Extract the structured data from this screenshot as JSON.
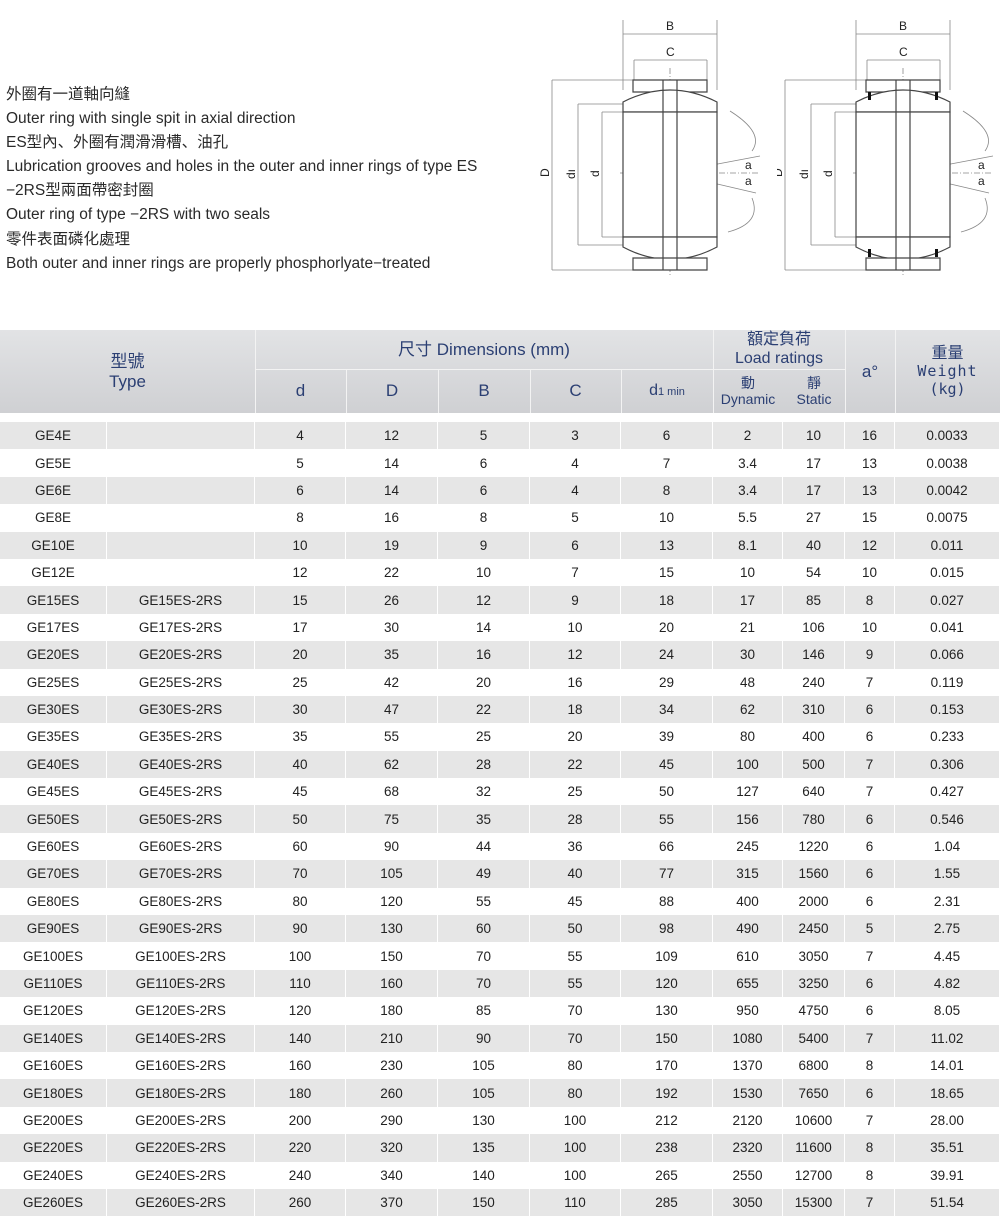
{
  "notes": [
    "外圈有一道軸向縫",
    "Outer ring with single spit in axial direction",
    "ES型內、外圈有潤滑滑槽、油孔",
    "Lubrication grooves and holes in the outer and inner rings of type ES",
    "−2RS型兩面帶密封圈",
    "Outer ring of type −2RS with two seals",
    "零件表面磷化處理",
    "Both outer and inner rings are properly phosphorlyate−treated"
  ],
  "diagram_labels": {
    "B": "B",
    "C": "C",
    "D_left": "D",
    "D_right": "D",
    "d1": "dı",
    "d": "d",
    "a": "a"
  },
  "header": {
    "type_zh": "型號",
    "type_en": "Type",
    "dimensions": "尺寸 Dimensions (mm)",
    "load_zh": "額定負荷",
    "load_en": "Load ratings",
    "d": "d",
    "D": "D",
    "B": "B",
    "C": "C",
    "d1": "d",
    "d1_sub": "1 min",
    "dyn_zh": "動",
    "dyn_en": "Dynamic",
    "sta_zh": "靜",
    "sta_en": "Static",
    "a": "a°",
    "weight_zh": "重量",
    "weight_en": "Weight",
    "weight_unit": "(kg)"
  },
  "rows": [
    [
      "GE4E",
      "",
      "4",
      "12",
      "5",
      "3",
      "6",
      "2",
      "10",
      "16",
      "0.0033"
    ],
    [
      "GE5E",
      "",
      "5",
      "14",
      "6",
      "4",
      "7",
      "3.4",
      "17",
      "13",
      "0.0038"
    ],
    [
      "GE6E",
      "",
      "6",
      "14",
      "6",
      "4",
      "8",
      "3.4",
      "17",
      "13",
      "0.0042"
    ],
    [
      "GE8E",
      "",
      "8",
      "16",
      "8",
      "5",
      "10",
      "5.5",
      "27",
      "15",
      "0.0075"
    ],
    [
      "GE10E",
      "",
      "10",
      "19",
      "9",
      "6",
      "13",
      "8.1",
      "40",
      "12",
      "0.011"
    ],
    [
      "GE12E",
      "",
      "12",
      "22",
      "10",
      "7",
      "15",
      "10",
      "54",
      "10",
      "0.015"
    ],
    [
      "GE15ES",
      "GE15ES-2RS",
      "15",
      "26",
      "12",
      "9",
      "18",
      "17",
      "85",
      "8",
      "0.027"
    ],
    [
      "GE17ES",
      "GE17ES-2RS",
      "17",
      "30",
      "14",
      "10",
      "20",
      "21",
      "106",
      "10",
      "0.041"
    ],
    [
      "GE20ES",
      "GE20ES-2RS",
      "20",
      "35",
      "16",
      "12",
      "24",
      "30",
      "146",
      "9",
      "0.066"
    ],
    [
      "GE25ES",
      "GE25ES-2RS",
      "25",
      "42",
      "20",
      "16",
      "29",
      "48",
      "240",
      "7",
      "0.119"
    ],
    [
      "GE30ES",
      "GE30ES-2RS",
      "30",
      "47",
      "22",
      "18",
      "34",
      "62",
      "310",
      "6",
      "0.153"
    ],
    [
      "GE35ES",
      "GE35ES-2RS",
      "35",
      "55",
      "25",
      "20",
      "39",
      "80",
      "400",
      "6",
      "0.233"
    ],
    [
      "GE40ES",
      "GE40ES-2RS",
      "40",
      "62",
      "28",
      "22",
      "45",
      "100",
      "500",
      "7",
      "0.306"
    ],
    [
      "GE45ES",
      "GE45ES-2RS",
      "45",
      "68",
      "32",
      "25",
      "50",
      "127",
      "640",
      "7",
      "0.427"
    ],
    [
      "GE50ES",
      "GE50ES-2RS",
      "50",
      "75",
      "35",
      "28",
      "55",
      "156",
      "780",
      "6",
      "0.546"
    ],
    [
      "GE60ES",
      "GE60ES-2RS",
      "60",
      "90",
      "44",
      "36",
      "66",
      "245",
      "1220",
      "6",
      "1.04"
    ],
    [
      "GE70ES",
      "GE70ES-2RS",
      "70",
      "105",
      "49",
      "40",
      "77",
      "315",
      "1560",
      "6",
      "1.55"
    ],
    [
      "GE80ES",
      "GE80ES-2RS",
      "80",
      "120",
      "55",
      "45",
      "88",
      "400",
      "2000",
      "6",
      "2.31"
    ],
    [
      "GE90ES",
      "GE90ES-2RS",
      "90",
      "130",
      "60",
      "50",
      "98",
      "490",
      "2450",
      "5",
      "2.75"
    ],
    [
      "GE100ES",
      "GE100ES-2RS",
      "100",
      "150",
      "70",
      "55",
      "109",
      "610",
      "3050",
      "7",
      "4.45"
    ],
    [
      "GE110ES",
      "GE110ES-2RS",
      "110",
      "160",
      "70",
      "55",
      "120",
      "655",
      "3250",
      "6",
      "4.82"
    ],
    [
      "GE120ES",
      "GE120ES-2RS",
      "120",
      "180",
      "85",
      "70",
      "130",
      "950",
      "4750",
      "6",
      "8.05"
    ],
    [
      "GE140ES",
      "GE140ES-2RS",
      "140",
      "210",
      "90",
      "70",
      "150",
      "1080",
      "5400",
      "7",
      "11.02"
    ],
    [
      "GE160ES",
      "GE160ES-2RS",
      "160",
      "230",
      "105",
      "80",
      "170",
      "1370",
      "6800",
      "8",
      "14.01"
    ],
    [
      "GE180ES",
      "GE180ES-2RS",
      "180",
      "260",
      "105",
      "80",
      "192",
      "1530",
      "7650",
      "6",
      "18.65"
    ],
    [
      "GE200ES",
      "GE200ES-2RS",
      "200",
      "290",
      "130",
      "100",
      "212",
      "2120",
      "10600",
      "7",
      "28.00"
    ],
    [
      "GE220ES",
      "GE220ES-2RS",
      "220",
      "320",
      "135",
      "100",
      "238",
      "2320",
      "11600",
      "8",
      "35.51"
    ],
    [
      "GE240ES",
      "GE240ES-2RS",
      "240",
      "340",
      "140",
      "100",
      "265",
      "2550",
      "12700",
      "8",
      "39.91"
    ],
    [
      "GE260ES",
      "GE260ES-2RS",
      "260",
      "370",
      "150",
      "110",
      "285",
      "3050",
      "15300",
      "7",
      "51.54"
    ]
  ],
  "colors": {
    "header_text": "#2b3f73",
    "row_alt": "#e6e6e6",
    "header_bg": "#d5d6d9"
  }
}
